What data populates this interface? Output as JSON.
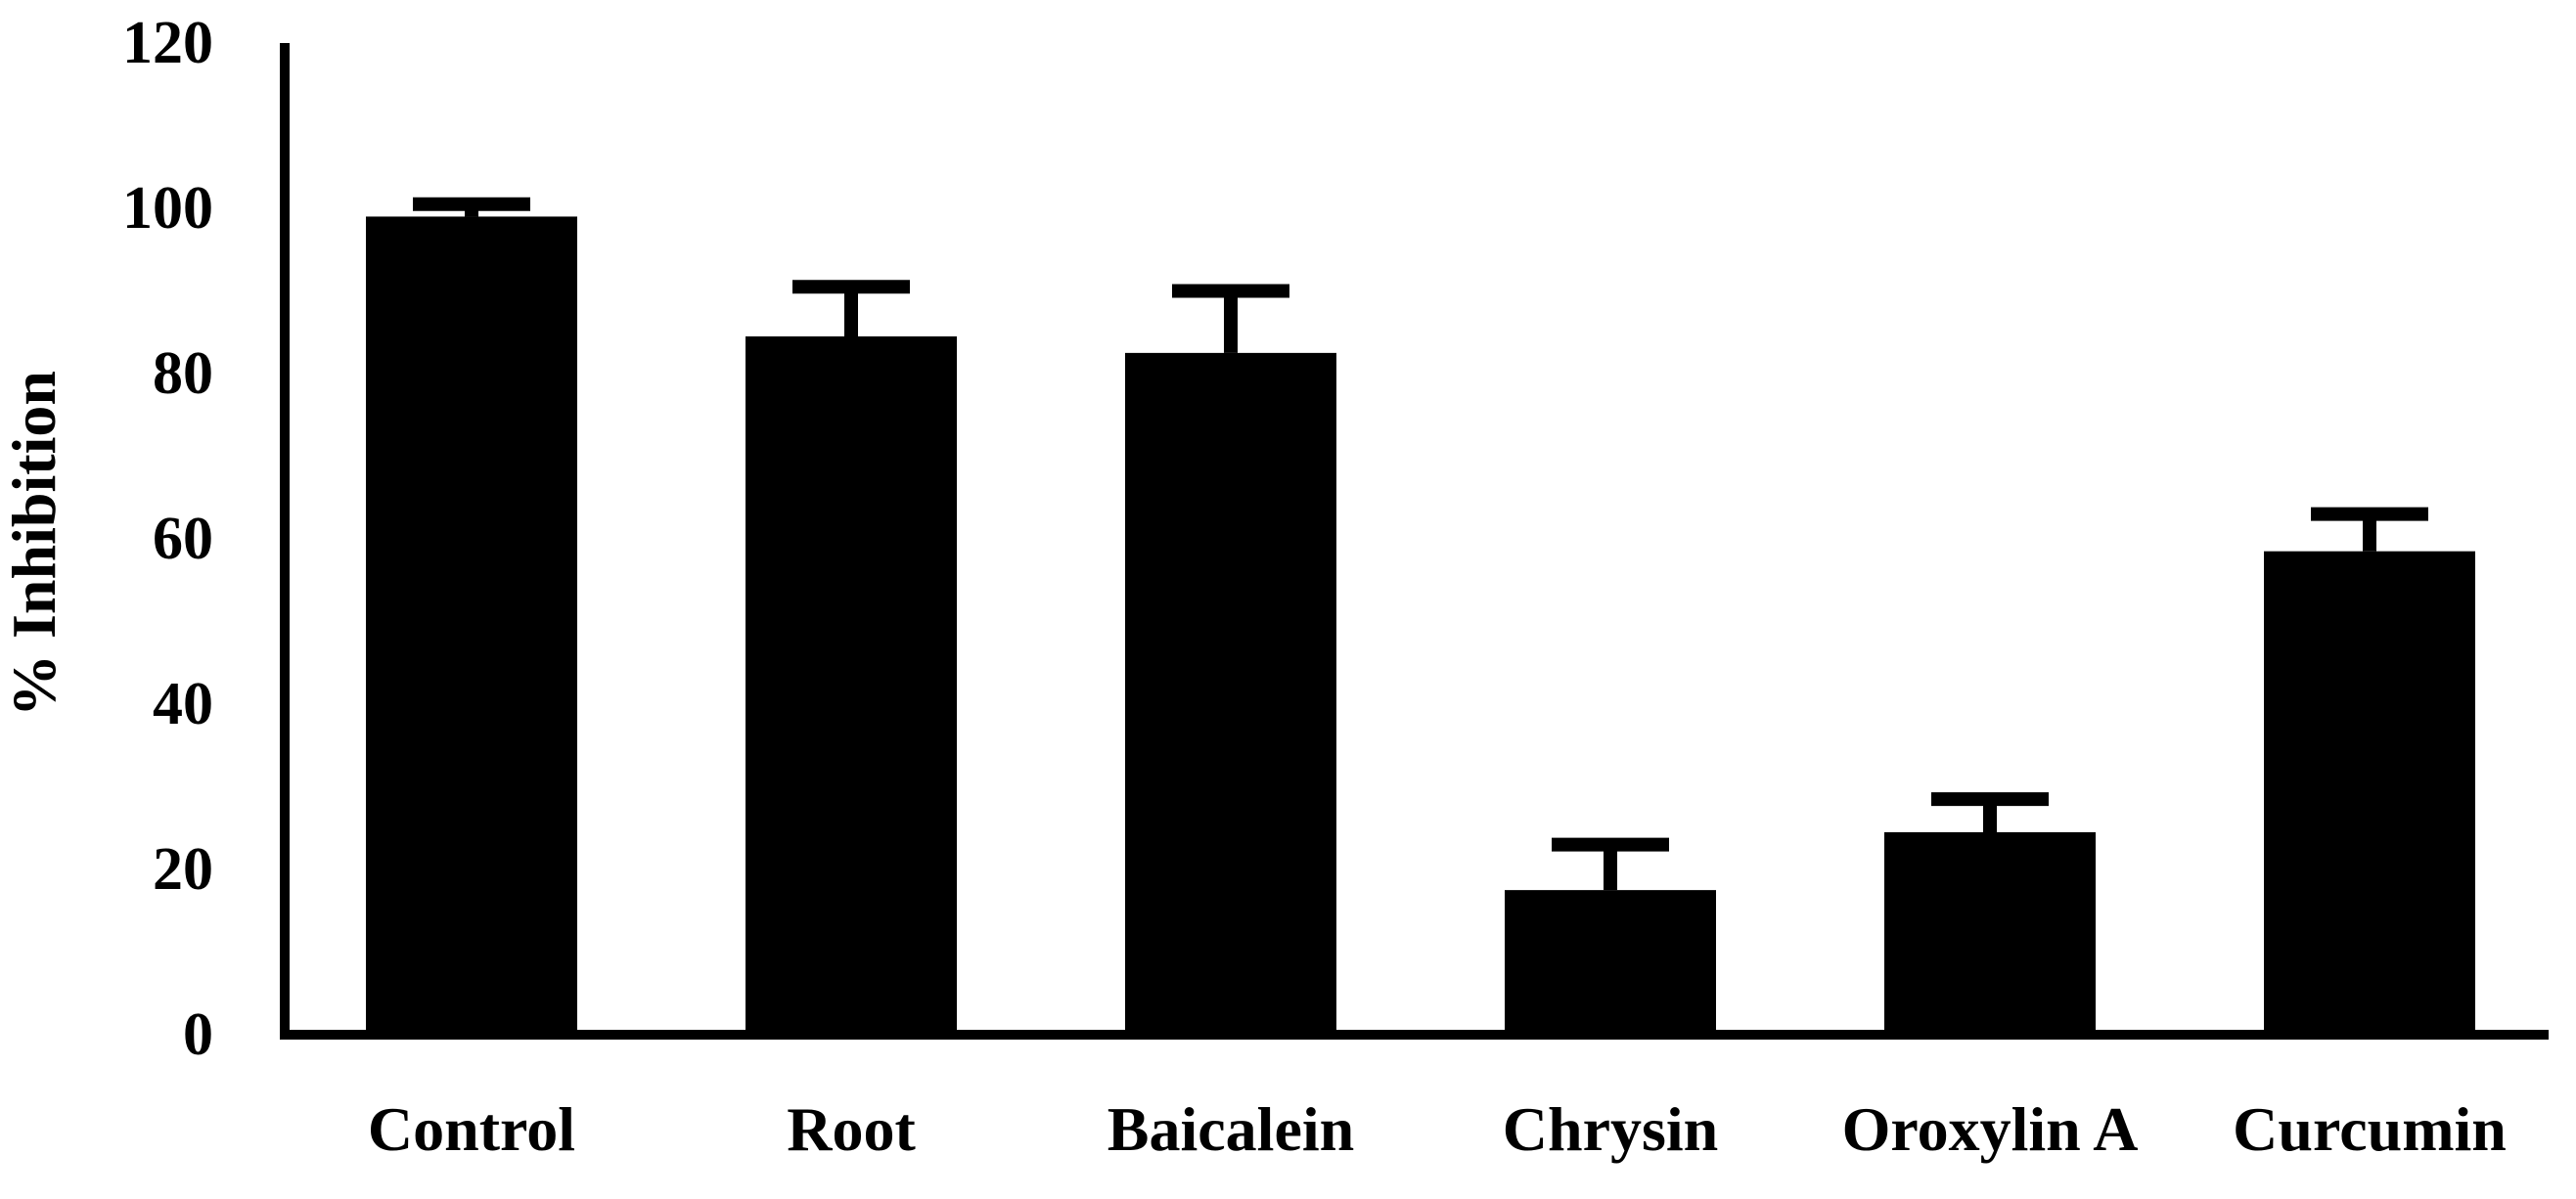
{
  "chart_data": {
    "type": "bar",
    "title": "",
    "xlabel": "",
    "ylabel": "% Inhibition",
    "ylim": [
      0,
      120
    ],
    "yticks": [
      0,
      20,
      40,
      60,
      80,
      100,
      120
    ],
    "grid": false,
    "legend": "none",
    "categories": [
      "Control",
      "Root",
      "Baicalein",
      "Chrysin",
      "Oroxylin A",
      "Curcumin"
    ],
    "values": [
      99,
      84.5,
      82.5,
      17.5,
      24.5,
      58.5
    ],
    "errors": [
      1.5,
      6,
      7.5,
      5.5,
      4,
      4.5
    ],
    "colors": {
      "bar": "#000000",
      "axis": "#000000"
    }
  }
}
